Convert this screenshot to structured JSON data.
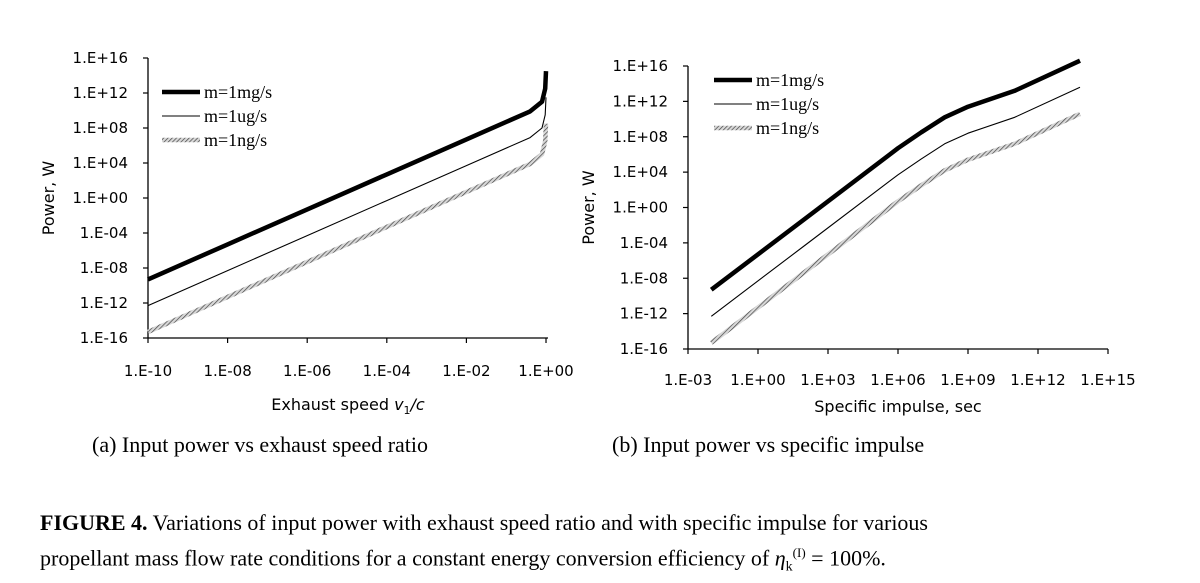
{
  "chart_data": [
    {
      "type": "line",
      "title": "",
      "caption": "(a) Input power vs exhaust speed ratio",
      "xlabel": "Exhaust speed ",
      "xlabel_var": "v",
      "xlabel_sub": "1",
      "xlabel_tail": "/c",
      "ylabel": "Power, W",
      "xscale": "log",
      "yscale": "log",
      "xlim": [
        -10,
        0.05
      ],
      "ylim": [
        -16,
        16
      ],
      "x_ticks": [
        "1.E-10",
        "1.E-08",
        "1.E-06",
        "1.E-04",
        "1.E-02",
        "1.E+00"
      ],
      "x_tick_exps": [
        -10,
        -8,
        -6,
        -4,
        -2,
        0
      ],
      "y_ticks": [
        "1.E-16",
        "1.E-12",
        "1.E-08",
        "1.E-04",
        "1.E+00",
        "1.E+04",
        "1.E+08",
        "1.E+12",
        "1.E+16"
      ],
      "y_tick_exps": [
        -16,
        -12,
        -8,
        -4,
        0,
        4,
        8,
        12,
        16
      ],
      "legend_position": "top-left",
      "series": [
        {
          "name": "m=1mg/s",
          "style": "thick",
          "log_x": [
            -10,
            -8,
            -6,
            -4,
            -2,
            -0.4,
            -0.1,
            -0.02,
            0
          ],
          "log_y": [
            -9.3,
            -5.3,
            -1.3,
            2.7,
            6.7,
            9.9,
            11.0,
            12.5,
            14.5
          ]
        },
        {
          "name": "m=1ug/s",
          "style": "thin",
          "log_x": [
            -10,
            -8,
            -6,
            -4,
            -2,
            -0.4,
            -0.1,
            -0.02,
            0
          ],
          "log_y": [
            -12.3,
            -8.3,
            -4.3,
            -0.3,
            3.7,
            6.9,
            8.0,
            9.5,
            11.5
          ]
        },
        {
          "name": "m=1ng/s",
          "style": "hatched",
          "log_x": [
            -10,
            -8,
            -6,
            -4,
            -2,
            -0.4,
            -0.1,
            -0.02,
            0
          ],
          "log_y": [
            -15.3,
            -11.3,
            -7.3,
            -3.3,
            0.7,
            3.9,
            5.0,
            6.5,
            8.5
          ]
        }
      ]
    },
    {
      "type": "line",
      "title": "",
      "caption": "(b) Input power vs specific impulse",
      "xlabel": "Specific impulse, sec",
      "ylabel": "Power, W",
      "xscale": "log",
      "yscale": "log",
      "xlim": [
        -3,
        15
      ],
      "ylim": [
        -16,
        16
      ],
      "x_ticks": [
        "1.E-03",
        "1.E+00",
        "1.E+03",
        "1.E+06",
        "1.E+09",
        "1.E+12",
        "1.E+15"
      ],
      "x_tick_exps": [
        -3,
        0,
        3,
        6,
        9,
        12,
        15
      ],
      "y_ticks": [
        "1.E-16",
        "1.E-12",
        "1.E-08",
        "1.E-04",
        "1.E+00",
        "1.E+04",
        "1.E+08",
        "1.E+12",
        "1.E+16"
      ],
      "y_tick_exps": [
        -16,
        -12,
        -8,
        -4,
        0,
        4,
        8,
        12,
        16
      ],
      "legend_position": "top-left",
      "series": [
        {
          "name": "m=1mg/s",
          "style": "thick",
          "log_x": [
            -2,
            2,
            6,
            7,
            8,
            9,
            11,
            13.8
          ],
          "log_y": [
            -9.3,
            -1.3,
            6.7,
            8.5,
            10.2,
            11.4,
            13.2,
            16.6
          ]
        },
        {
          "name": "m=1ug/s",
          "style": "thin",
          "log_x": [
            -2,
            2,
            6,
            7,
            8,
            9,
            11,
            13.8
          ],
          "log_y": [
            -12.3,
            -4.3,
            3.7,
            5.5,
            7.2,
            8.4,
            10.2,
            13.6
          ]
        },
        {
          "name": "m=1ng/s",
          "style": "hatched",
          "log_x": [
            -2,
            2,
            6,
            7,
            8,
            9,
            11,
            13.8
          ],
          "log_y": [
            -15.3,
            -7.3,
            0.7,
            2.5,
            4.2,
            5.4,
            7.2,
            10.6
          ]
        }
      ]
    }
  ],
  "figure_caption": {
    "label": "FIGURE 4.",
    "text_line1": "Variations of input power with exhaust speed ratio and with specific impulse for various",
    "text_line2a": "propellant mass flow rate conditions for a constant energy conversion efficiency of ",
    "eta": "η",
    "eta_sub": "k",
    "eta_sup": "(I)",
    "text_line2b": " = 100%."
  }
}
